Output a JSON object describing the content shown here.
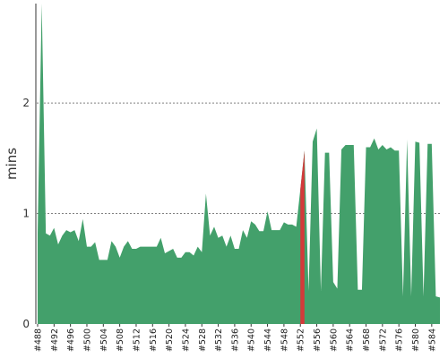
{
  "chart_data": {
    "type": "area",
    "ylabel": "mins",
    "xlabel": "",
    "title": "",
    "ylim": [
      0,
      2.9
    ],
    "yticks": [
      0,
      1,
      2
    ],
    "grid": "horizontal-dashed",
    "colors": {
      "area": "#43a06b",
      "highlight": "#d33a3a",
      "grid": "#808080",
      "axis": "#333333"
    },
    "start_build": 488,
    "tick_step": 4,
    "tick_labels": [
      "#488",
      "#492",
      "#496",
      "#500",
      "#504",
      "#508",
      "#512",
      "#516",
      "#520",
      "#524",
      "#528",
      "#532",
      "#536",
      "#540",
      "#544",
      "#548",
      "#552",
      "#556",
      "#560",
      "#564",
      "#568",
      "#572",
      "#576",
      "#580",
      "#584"
    ],
    "highlight_range": [
      "#552",
      "#553"
    ],
    "values": [
      0.82,
      2.9,
      0.82,
      0.8,
      0.87,
      0.72,
      0.8,
      0.85,
      0.83,
      0.85,
      0.75,
      0.95,
      0.7,
      0.7,
      0.74,
      0.58,
      0.58,
      0.58,
      0.75,
      0.7,
      0.6,
      0.7,
      0.75,
      0.68,
      0.68,
      0.7,
      0.7,
      0.7,
      0.7,
      0.7,
      0.78,
      0.64,
      0.66,
      0.68,
      0.6,
      0.6,
      0.65,
      0.65,
      0.62,
      0.7,
      0.65,
      1.18,
      0.8,
      0.88,
      0.78,
      0.8,
      0.7,
      0.8,
      0.68,
      0.68,
      0.85,
      0.78,
      0.93,
      0.9,
      0.84,
      0.84,
      1.02,
      0.85,
      0.85,
      0.85,
      0.92,
      0.9,
      0.9,
      0.88,
      1.22,
      1.57,
      0.3,
      1.65,
      1.77,
      0.3,
      1.55,
      1.55,
      0.38,
      0.32,
      1.58,
      1.62,
      1.62,
      1.62,
      0.31,
      0.31,
      1.6,
      1.6,
      1.68,
      1.58,
      1.62,
      1.58,
      1.6,
      1.57,
      1.57,
      0.25,
      1.67,
      0.25,
      1.65,
      1.64,
      0.25,
      1.63,
      1.63,
      0.25,
      0.24
    ]
  }
}
